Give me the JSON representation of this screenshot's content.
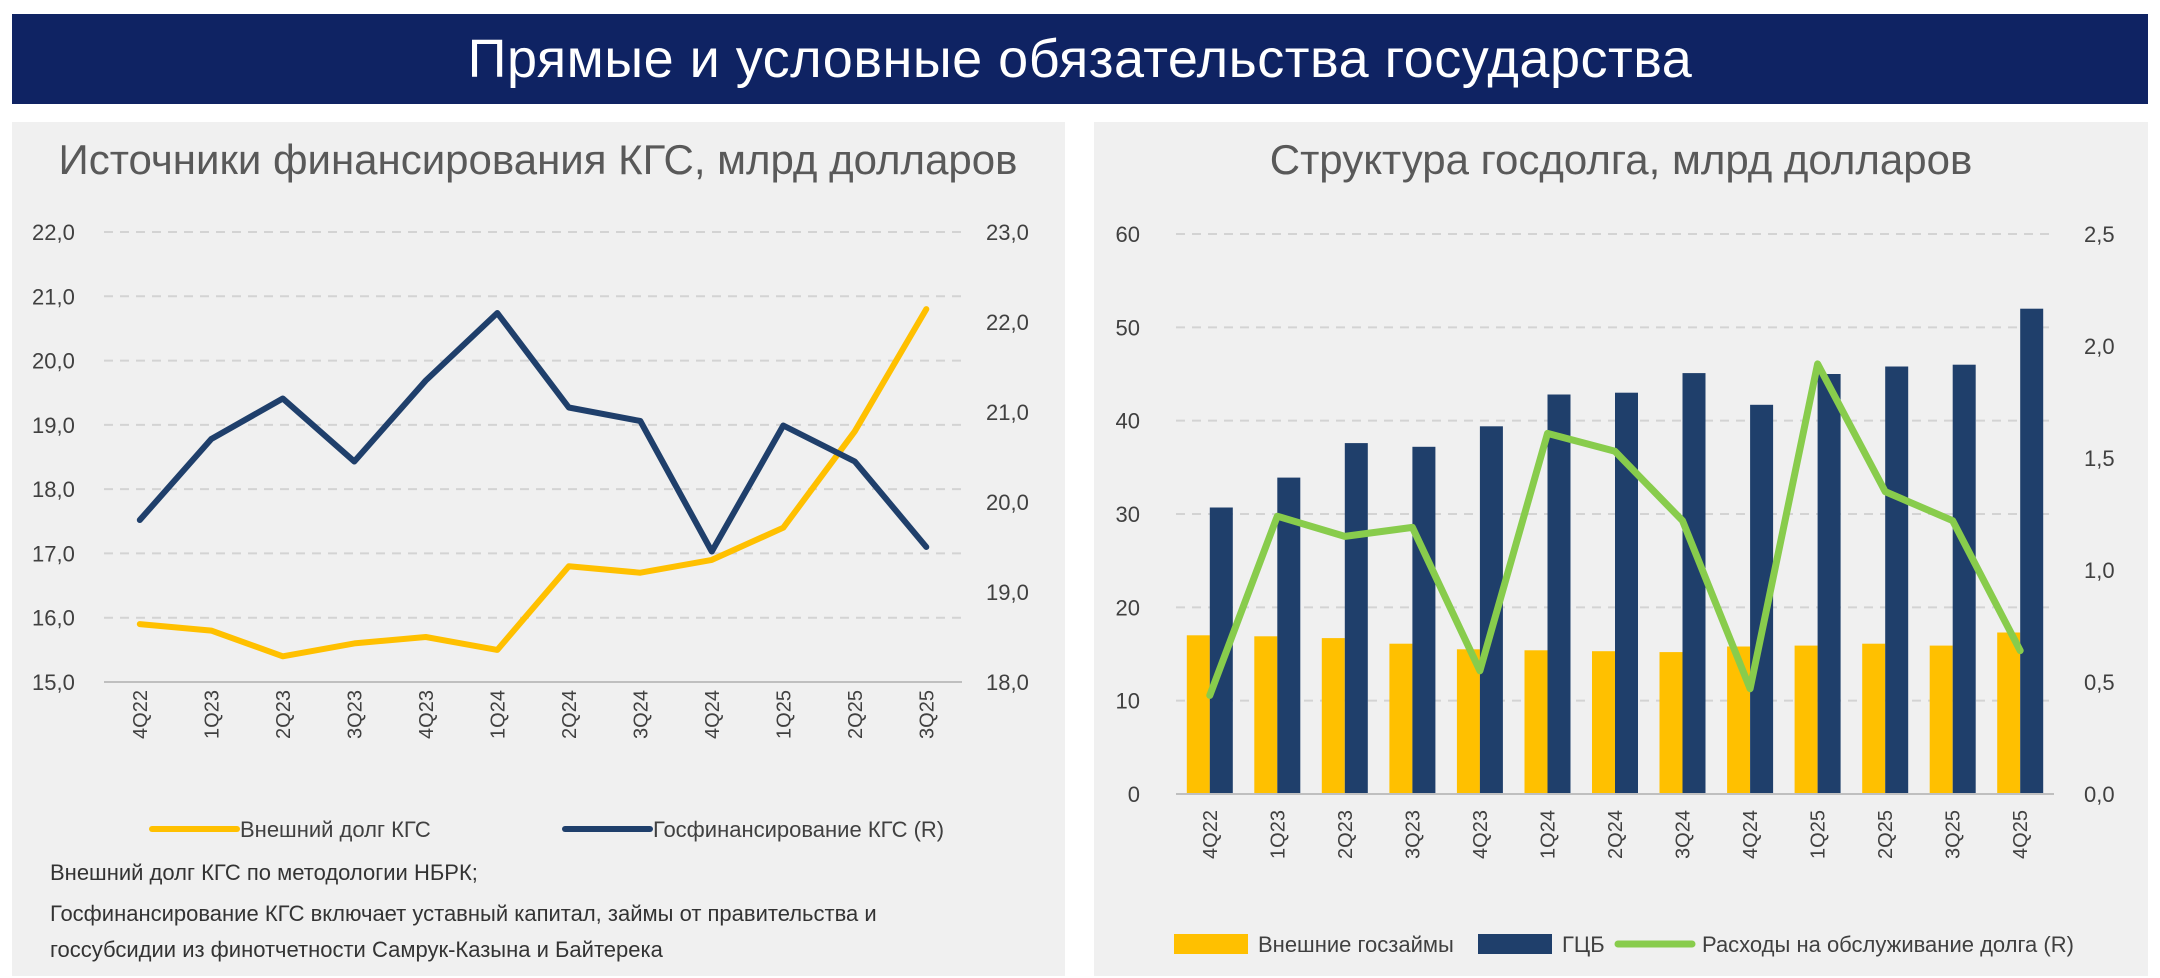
{
  "header": {
    "title": "Прямые и условные обязательства государства"
  },
  "colors": {
    "banner": "#0f2363",
    "yellow": "#ffc000",
    "navy": "#1f3f6b",
    "green": "#88cc4c",
    "panel_bg": "#f0f0f0"
  },
  "chart_data": [
    {
      "type": "line",
      "title": "Источники финансирования КГС, млрд долларов",
      "categories": [
        "4Q22",
        "1Q23",
        "2Q23",
        "3Q23",
        "4Q23",
        "1Q24",
        "2Q24",
        "3Q24",
        "4Q24",
        "1Q25",
        "2Q25",
        "3Q25"
      ],
      "ylim": [
        15.0,
        22.0
      ],
      "yticks": [
        "15,0",
        "16,0",
        "17,0",
        "18,0",
        "19,0",
        "20,0",
        "21,0",
        "22,0"
      ],
      "y2lim": [
        18.0,
        23.0
      ],
      "y2ticks": [
        "18,0",
        "19,0",
        "20,0",
        "21,0",
        "22,0",
        "23,0"
      ],
      "series": [
        {
          "name": "Внешний долг КГС",
          "axis": "left",
          "color": "#ffc000",
          "values": [
            15.9,
            15.8,
            15.4,
            15.6,
            15.7,
            15.5,
            16.8,
            16.7,
            16.9,
            17.4,
            18.9,
            20.8
          ]
        },
        {
          "name": "Госфинансирование КГС (R)",
          "axis": "right",
          "color": "#1f3f6b",
          "values": [
            19.8,
            20.7,
            21.15,
            20.45,
            21.35,
            22.1,
            21.05,
            20.9,
            19.45,
            20.85,
            20.45,
            19.5
          ]
        }
      ],
      "legend": "bottom",
      "grid": true,
      "notes": [
        "Внешний долг КГС по методологии НБРК;",
        "Госфинансирование КГС включает уставный капитал, займы от правительства и",
        "госсубсидии из финотчетности Самрук-Казына и Байтерека"
      ]
    },
    {
      "type": "bar",
      "title": "Структура госдолга, млрд долларов",
      "categories": [
        "4Q22",
        "1Q23",
        "2Q23",
        "3Q23",
        "4Q23",
        "1Q24",
        "2Q24",
        "3Q24",
        "4Q24",
        "1Q25",
        "2Q25",
        "3Q25",
        "4Q25"
      ],
      "ylim": [
        0,
        60
      ],
      "yticks": [
        "0",
        "10",
        "20",
        "30",
        "40",
        "50",
        "60"
      ],
      "y2lim": [
        0.0,
        2.5
      ],
      "y2ticks": [
        "0,0",
        "0,5",
        "1,0",
        "1,5",
        "2,0",
        "2,5"
      ],
      "series": [
        {
          "name": "Внешние госзаймы",
          "type": "bar",
          "axis": "left",
          "color": "#ffc000",
          "values": [
            17.0,
            16.9,
            16.7,
            16.1,
            15.5,
            15.4,
            15.3,
            15.2,
            15.8,
            15.9,
            16.1,
            15.9,
            17.3
          ]
        },
        {
          "name": "ГЦБ",
          "type": "bar",
          "axis": "left",
          "color": "#1f3f6b",
          "values": [
            30.7,
            33.9,
            37.6,
            37.2,
            39.4,
            42.8,
            43.0,
            45.1,
            41.7,
            45.0,
            45.8,
            46.0,
            52.0
          ]
        },
        {
          "name": "Расходы на обслуживание долга (R)",
          "type": "line",
          "axis": "right",
          "color": "#88cc4c",
          "values": [
            0.44,
            1.24,
            1.15,
            1.19,
            0.55,
            1.61,
            1.53,
            1.22,
            0.47,
            1.92,
            1.35,
            1.22,
            0.64
          ]
        }
      ],
      "legend": "bottom",
      "grid": true
    }
  ]
}
